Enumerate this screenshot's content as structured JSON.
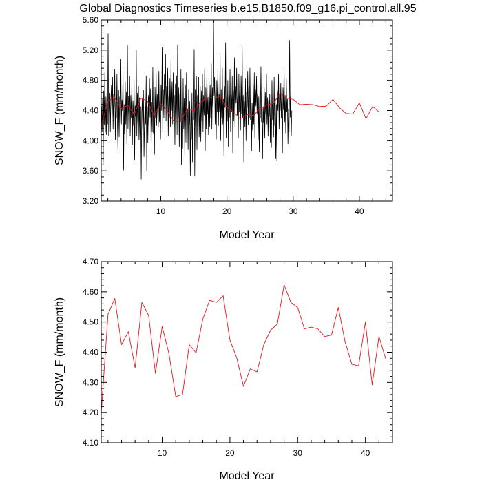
{
  "figure": {
    "title": "Global Diagnostics Timeseries b.e15.B1850.f09_g16.pi_control.all.95"
  },
  "chart_data": [
    {
      "type": "line",
      "xlabel": "Model Year",
      "ylabel": "SNOW_F (mm/month)",
      "xlim": [
        1,
        45
      ],
      "ylim": [
        3.2,
        5.6
      ],
      "x_ticks": [
        10,
        20,
        30,
        40
      ],
      "y_ticks": [
        3.2,
        3.6,
        4.0,
        4.4,
        4.8,
        5.2,
        5.6
      ],
      "x_tick_labels": [
        "10",
        "20",
        "30",
        "40"
      ],
      "y_tick_labels": [
        "3.20",
        "3.60",
        "4.00",
        "4.40",
        "4.80",
        "5.20",
        "5.60"
      ],
      "grid": false,
      "series": [
        {
          "style": "monthly",
          "color": "#000000",
          "values": [
            4.46,
            4.12,
            4.55,
            3.68,
            4.66,
            4.21,
            4.9,
            4.11,
            4.58,
            4.08,
            4.68,
            4.22,
            5.42,
            4.06,
            4.35,
            4.63,
            4.12,
            4.56,
            4.73,
            4.28,
            4.84,
            4.15,
            4.62,
            4.44,
            4.95,
            4.01,
            4.52,
            4.3,
            4.88,
            4.18,
            3.84,
            4.67,
            4.05,
            4.58,
            4.25,
            5.08,
            4.22,
            4.54,
            4.4,
            4.92,
            3.61,
            4.48,
            4.09,
            4.78,
            4.22,
            4.65,
            3.96,
            5.26,
            4.16,
            4.59,
            4.32,
            4.85,
            4.06,
            4.6,
            4.3,
            4.78,
            3.95,
            4.53,
            4.2,
            4.81,
            3.74,
            4.46,
            4.32,
            5.2,
            4.06,
            4.63,
            4.24,
            4.72,
            4.01,
            4.57,
            3.91,
            4.45,
            3.49,
            4.38,
            4.55,
            4.06,
            4.67,
            3.79,
            4.24,
            4.52,
            4.22,
            4.86,
            3.6,
            4.44,
            3.97,
            4.6,
            4.2,
            4.82,
            4.31,
            4.69,
            3.86,
            4.51,
            4.12,
            4.97,
            4.1,
            4.56,
            3.82,
            4.71,
            4.3,
            4.9,
            4.2,
            4.62,
            4.35,
            4.18,
            4.92,
            4.25,
            4.54,
            4.02,
            4.74,
            4.4,
            5.24,
            4.12,
            4.68,
            4.3,
            4.88,
            4.48,
            5.15,
            4.26,
            4.72,
            4.35,
            4.96,
            4.06,
            4.58,
            4.3,
            4.82,
            4.18,
            5.08,
            4.4,
            4.78,
            4.22,
            4.9,
            4.31,
            4.6,
            3.95,
            4.75,
            4.21,
            4.86,
            4.08,
            5.27,
            4.3,
            4.7,
            3.92,
            4.62,
            4.25,
            4.95,
            3.68,
            4.44,
            3.9,
            4.82,
            4.16,
            4.56,
            3.79,
            4.74,
            3.98,
            4.9,
            4.3,
            4.41,
            3.88,
            4.68,
            4.21,
            4.52,
            3.54,
            4.4,
            4.02,
            4.63,
            3.72,
            4.5,
            4.28,
            5.21,
            3.53,
            4.68,
            4.16,
            4.85,
            3.88,
            4.6,
            4.22,
            4.84,
            4.05,
            4.36,
            4.72,
            3.99,
            4.66,
            4.26,
            4.88,
            4.12,
            4.6,
            4.34,
            4.95,
            3.87,
            4.7,
            4.16,
            4.92,
            4.35,
            4.56,
            4.08,
            4.82,
            4.19,
            4.74,
            4.3,
            5.02,
            4.15,
            4.7,
            4.45,
            5.58,
            4.6,
            4.84,
            4.22,
            4.66,
            4.02,
            4.8,
            4.38,
            4.98,
            4.2,
            4.62,
            4.39,
            5.16,
            4.0,
            4.68,
            4.3,
            4.96,
            4.22,
            4.55,
            3.8,
            4.72,
            4.44,
            5.3,
            4.04,
            4.58,
            4.26,
            4.8,
            3.92,
            4.7,
            4.31,
            4.95,
            4.12,
            4.62,
            4.38,
            4.85,
            3.84,
            4.66,
            4.26,
            5.1,
            4.18,
            4.72,
            4.5,
            4.96,
            4.34,
            4.58,
            4.04,
            4.88,
            4.38,
            4.7,
            4.14,
            4.86,
            4.36,
            5.25,
            4.3,
            4.6,
            3.72,
            4.52,
            4.18,
            4.82,
            4.0,
            4.64,
            4.44,
            4.92,
            4.21,
            4.7,
            4.3,
            4.96,
            4.28,
            4.6,
            3.86,
            4.5,
            4.14,
            4.74,
            4.22,
            4.9,
            4.04,
            4.68,
            4.46,
            4.85,
            4.35,
            4.62,
            4.01,
            4.58,
            3.85,
            4.66,
            4.3,
            4.98,
            4.25,
            4.52,
            3.76,
            4.44,
            4.24,
            4.7,
            4.04,
            4.64,
            4.36,
            4.88,
            4.22,
            4.57,
            4.06,
            4.54,
            4.32,
            4.62,
            3.98,
            4.5,
            3.91,
            4.8,
            4.28,
            4.58,
            4.05,
            4.84,
            4.2,
            4.56,
            3.76,
            4.48,
            3.73,
            4.66,
            4.4,
            4.88,
            4.15,
            4.62,
            4.4,
            4.76,
            4.3,
            4.58,
            3.84,
            4.7,
            4.41,
            4.96,
            4.25,
            4.6,
            4.1,
            4.82,
            4.38,
            4.55,
            3.96,
            4.42,
            4.12,
            5.33,
            4.31,
            4.58,
            4.06,
            4.4
          ]
        },
        {
          "style": "annual",
          "color": "#e8141c",
          "values": [
            4.2,
            4.525,
            4.578,
            4.425,
            4.468,
            4.348,
            4.565,
            4.522,
            4.33,
            4.485,
            4.395,
            4.253,
            4.26,
            4.425,
            4.398,
            4.51,
            4.572,
            4.565,
            4.587,
            4.44,
            4.382,
            4.287,
            4.345,
            4.335,
            4.425,
            4.473,
            4.493,
            4.623,
            4.565,
            4.548,
            4.477,
            4.483,
            4.477,
            4.452,
            4.457,
            4.548,
            4.435,
            4.36,
            4.355,
            4.5,
            4.292,
            4.452,
            4.378
          ]
        }
      ]
    },
    {
      "type": "line",
      "xlabel": "Model Year",
      "ylabel": "SNOW_F (mm/month)",
      "xlim": [
        1,
        44
      ],
      "ylim": [
        4.1,
        4.7
      ],
      "x_ticks": [
        10,
        20,
        30,
        40
      ],
      "y_ticks": [
        4.1,
        4.2,
        4.3,
        4.4,
        4.5,
        4.6,
        4.7
      ],
      "x_tick_labels": [
        "10",
        "20",
        "30",
        "40"
      ],
      "y_tick_labels": [
        "4.10",
        "4.20",
        "4.30",
        "4.40",
        "4.50",
        "4.60",
        "4.70"
      ],
      "grid": false,
      "series": [
        {
          "style": "annual",
          "color": "#e8141c",
          "values": [
            4.2,
            4.525,
            4.578,
            4.425,
            4.468,
            4.348,
            4.565,
            4.522,
            4.33,
            4.485,
            4.395,
            4.253,
            4.26,
            4.425,
            4.398,
            4.51,
            4.572,
            4.565,
            4.587,
            4.44,
            4.382,
            4.287,
            4.345,
            4.335,
            4.425,
            4.473,
            4.493,
            4.623,
            4.565,
            4.548,
            4.477,
            4.483,
            4.477,
            4.452,
            4.457,
            4.548,
            4.435,
            4.36,
            4.355,
            4.5,
            4.292,
            4.452,
            4.378
          ]
        }
      ]
    }
  ]
}
